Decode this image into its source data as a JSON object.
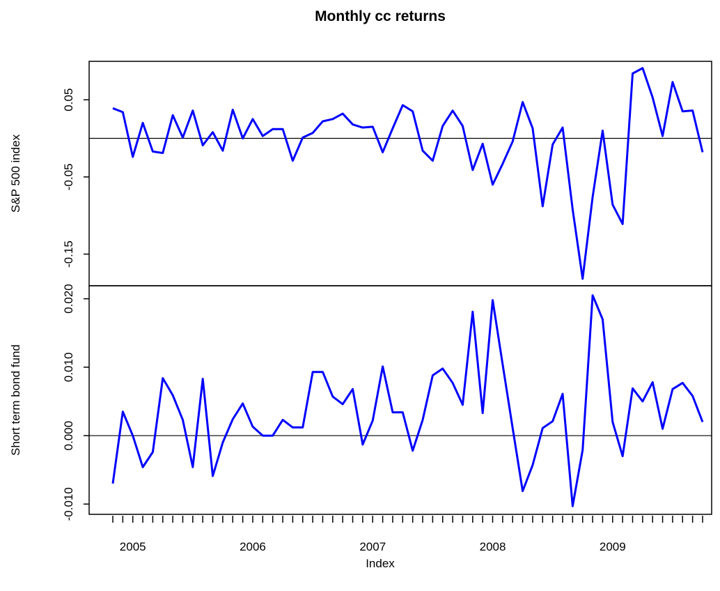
{
  "chart_data": [
    {
      "type": "line",
      "title": "Monthly cc returns",
      "ylabel": "S&P 500 index",
      "ylim": [
        -0.191,
        0.0998
      ],
      "yticks": [
        -0.15,
        -0.05,
        0.05
      ],
      "hline": 0,
      "series": [
        {
          "name": "S&P 500 index",
          "color": "#0000ff",
          "values": [
            0.039,
            0.034,
            -0.024,
            0.02,
            -0.017,
            -0.019,
            0.03,
            0.001,
            0.036,
            -0.009,
            0.008,
            -0.016,
            0.037,
            0.0,
            0.025,
            0.003,
            0.012,
            0.012,
            -0.029,
            0.001,
            0.007,
            0.022,
            0.025,
            0.032,
            0.018,
            0.014,
            0.015,
            -0.018,
            0.013,
            0.043,
            0.035,
            -0.016,
            -0.029,
            0.016,
            0.036,
            0.016,
            -0.041,
            -0.007,
            -0.06,
            -0.033,
            -0.004,
            0.047,
            0.013,
            -0.088,
            -0.008,
            0.014,
            -0.092,
            -0.182,
            -0.076,
            0.01,
            -0.086,
            -0.111,
            0.084,
            0.091,
            0.053,
            0.003,
            0.073,
            0.035,
            0.036,
            -0.018
          ]
        }
      ]
    },
    {
      "type": "line",
      "ylabel": "Short term bond fund",
      "xlabel": "Index",
      "categories": [
        null,
        null,
        "2005",
        null,
        null,
        null,
        null,
        null,
        null,
        null,
        null,
        null,
        null,
        null,
        "2006",
        null,
        null,
        null,
        null,
        null,
        null,
        null,
        null,
        null,
        null,
        null,
        "2007",
        null,
        null,
        null,
        null,
        null,
        null,
        null,
        null,
        null,
        null,
        null,
        "2008",
        null,
        null,
        null,
        null,
        null,
        null,
        null,
        null,
        null,
        null,
        null,
        "2009",
        null,
        null,
        null,
        null,
        null,
        null,
        null,
        null,
        null
      ],
      "ylim": [
        -0.0115,
        0.0219
      ],
      "yticks": [
        {
          "value": -0.01,
          "label": "-0.010"
        },
        {
          "value": 0,
          "label": "0.000"
        },
        {
          "value": 0.01,
          "label": "0.010"
        },
        {
          "value": 0.02,
          "label": "0.020"
        }
      ],
      "hline": 0,
      "series": [
        {
          "name": "Short term bond fund",
          "color": "#0000ff",
          "values": [
            -0.007,
            0.0035,
            0.0,
            -0.0046,
            -0.0024,
            0.0084,
            0.0059,
            0.0023,
            -0.0046,
            0.0083,
            -0.0059,
            -0.001,
            0.0024,
            0.0047,
            0.0013,
            0.0,
            0.0,
            0.0023,
            0.0012,
            0.0012,
            0.0093,
            0.0093,
            0.0057,
            0.0046,
            0.0068,
            -0.0013,
            0.0022,
            0.0101,
            0.0034,
            0.0034,
            -0.0022,
            0.0023,
            0.0088,
            0.0098,
            0.0077,
            0.0045,
            0.0181,
            0.0033,
            0.0198,
            0.0104,
            0.0011,
            -0.0081,
            -0.0043,
            0.0011,
            0.0021,
            0.0061,
            -0.0103,
            -0.0021,
            0.0205,
            0.017,
            0.002,
            -0.003,
            0.0069,
            0.005,
            0.0078,
            0.001,
            0.0068,
            0.0077,
            0.0058,
            0.002
          ]
        }
      ]
    }
  ]
}
